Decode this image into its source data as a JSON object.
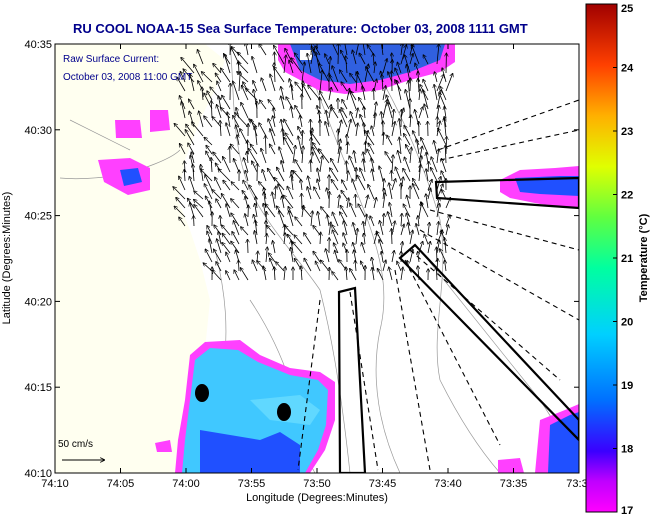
{
  "title": "RU COOL  NOAA-15  Sea Surface Temperature:  October 03, 2008 1111 GMT",
  "current_label_line1": "Raw Surface Current:",
  "current_label_line2": "October 03, 2008 11:00 GMT",
  "scale_label": "50 cm/s",
  "x_axis": {
    "label": "Longitude (Degrees:Minutes)",
    "ticks": [
      "74:10",
      "74:05",
      "74:00",
      "73:55",
      "73:50",
      "73:45",
      "73:40",
      "73:35",
      "73:3"
    ]
  },
  "y_axis": {
    "label": "Latitude (Degrees:Minutes)",
    "ticks": [
      "40:35",
      "40:30",
      "40:25",
      "40:20",
      "40:15",
      "40:10"
    ]
  },
  "colorbar": {
    "label": "Temperature (°C)",
    "ticks": [
      "25",
      "24",
      "23",
      "22",
      "21",
      "20",
      "19",
      "18",
      "17"
    ],
    "range": [
      17,
      25
    ],
    "colors": [
      "#ff00ff",
      "#3a00ff",
      "#0090ff",
      "#00e8ff",
      "#40ff80",
      "#e0ff00",
      "#ffb000",
      "#ff3000",
      "#a00000"
    ]
  },
  "colors": {
    "land": "#fffff0",
    "title": "#00008b",
    "sst_warm": "#40c8ff",
    "sst_cool": "#2050ff",
    "sst_edge": "#ff40ff"
  }
}
